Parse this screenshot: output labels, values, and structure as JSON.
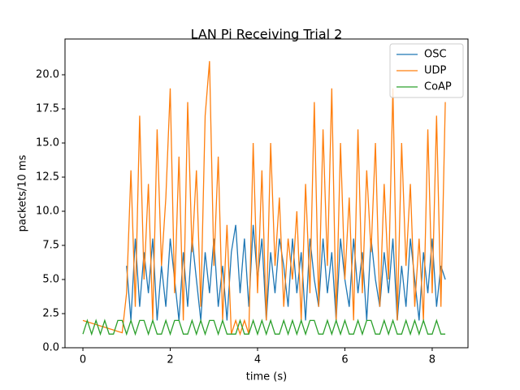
{
  "chart_data": {
    "type": "line",
    "title": "LAN Pi Receiving Trial 2",
    "x_label": "time (s)",
    "y_label": "packets/10 ms",
    "x": [
      0,
      0.1,
      0.2,
      0.3,
      0.4,
      0.5,
      0.6,
      0.7,
      0.8,
      0.9,
      1.0,
      1.1,
      1.2,
      1.3,
      1.4,
      1.5,
      1.6,
      1.7,
      1.8,
      1.9,
      2.0,
      2.1,
      2.2,
      2.3,
      2.4,
      2.5,
      2.6,
      2.7,
      2.8,
      2.9,
      3.0,
      3.1,
      3.2,
      3.3,
      3.4,
      3.5,
      3.6,
      3.7,
      3.8,
      3.9,
      4.0,
      4.1,
      4.2,
      4.3,
      4.4,
      4.5,
      4.6,
      4.7,
      4.8,
      4.9,
      5.0,
      5.1,
      5.2,
      5.3,
      5.4,
      5.5,
      5.6,
      5.7,
      5.8,
      5.9,
      6.0,
      6.1,
      6.2,
      6.3,
      6.4,
      6.5,
      6.6,
      6.7,
      6.8,
      6.9,
      7.0,
      7.1,
      7.2,
      7.3,
      7.4,
      7.5,
      7.6,
      7.7,
      7.8,
      7.9,
      8.0,
      8.1,
      8.2,
      8.3
    ],
    "series": [
      {
        "name": "OSC",
        "color": "#1f77b4",
        "values": [
          null,
          null,
          null,
          null,
          null,
          null,
          null,
          null,
          null,
          null,
          6,
          2,
          8,
          3,
          7,
          4,
          8,
          2,
          6,
          3,
          8,
          5,
          2,
          7,
          3,
          8,
          5,
          2,
          7,
          4,
          8,
          3,
          6,
          2,
          7,
          9,
          4,
          8,
          3,
          9,
          5,
          8,
          2,
          7,
          4,
          8,
          6,
          3,
          8,
          4,
          7,
          2,
          8,
          5,
          3,
          8,
          4,
          7,
          2,
          8,
          5,
          3,
          8,
          4,
          7,
          2,
          8,
          5,
          3,
          7,
          4,
          8,
          2,
          6,
          3,
          8,
          5,
          2,
          7,
          4,
          8,
          3,
          6,
          5
        ]
      },
      {
        "name": "UDP",
        "color": "#ff7f0e",
        "values": [
          2,
          1.9,
          1.8,
          1.7,
          1.6,
          1.5,
          1.4,
          1.3,
          1.2,
          1.1,
          4,
          13,
          3,
          17,
          5,
          12,
          2,
          16,
          6,
          11,
          19,
          4,
          14,
          2,
          18,
          7,
          13,
          3,
          17,
          21,
          6,
          14,
          2,
          9,
          1,
          2,
          1,
          2,
          1,
          15,
          4,
          13,
          2,
          15,
          6,
          11,
          3,
          8,
          5,
          10,
          2,
          12,
          4,
          18,
          3,
          16,
          6,
          19,
          2,
          15,
          5,
          11,
          2,
          16,
          4,
          13,
          7,
          15,
          3,
          12,
          5,
          19,
          2,
          15,
          6,
          12,
          3,
          8,
          2,
          16,
          4,
          17,
          3,
          18
        ]
      },
      {
        "name": "CoAP",
        "color": "#2ca02c",
        "values": [
          1,
          2,
          1,
          2,
          1,
          2,
          1,
          1,
          2,
          2,
          1,
          2,
          1,
          2,
          2,
          1,
          2,
          1,
          1,
          2,
          1,
          2,
          2,
          1,
          1,
          2,
          1,
          2,
          1,
          2,
          2,
          1,
          2,
          1,
          1,
          1,
          2,
          1,
          1,
          2,
          1,
          2,
          1,
          2,
          1,
          1,
          2,
          1,
          2,
          1,
          2,
          1,
          2,
          2,
          1,
          1,
          2,
          1,
          2,
          1,
          2,
          1,
          1,
          2,
          1,
          2,
          2,
          1,
          1,
          2,
          1,
          2,
          1,
          1,
          2,
          1,
          2,
          1,
          2,
          1,
          1,
          2,
          1,
          1
        ]
      }
    ],
    "xlim": [
      -0.41,
      8.82
    ],
    "ylim": [
      0,
      22.62
    ],
    "xticks": [
      0,
      2,
      4,
      6,
      8
    ],
    "yticks": [
      {
        "value": 0,
        "label": "0.0"
      },
      2.5,
      {
        "value": 5,
        "label": "5.0"
      },
      7.5,
      {
        "value": 10,
        "label": "10.0"
      },
      12.5,
      {
        "value": 15,
        "label": "15.0"
      },
      17.5,
      {
        "value": 20,
        "label": "20.0"
      }
    ],
    "legend": "upper right"
  }
}
